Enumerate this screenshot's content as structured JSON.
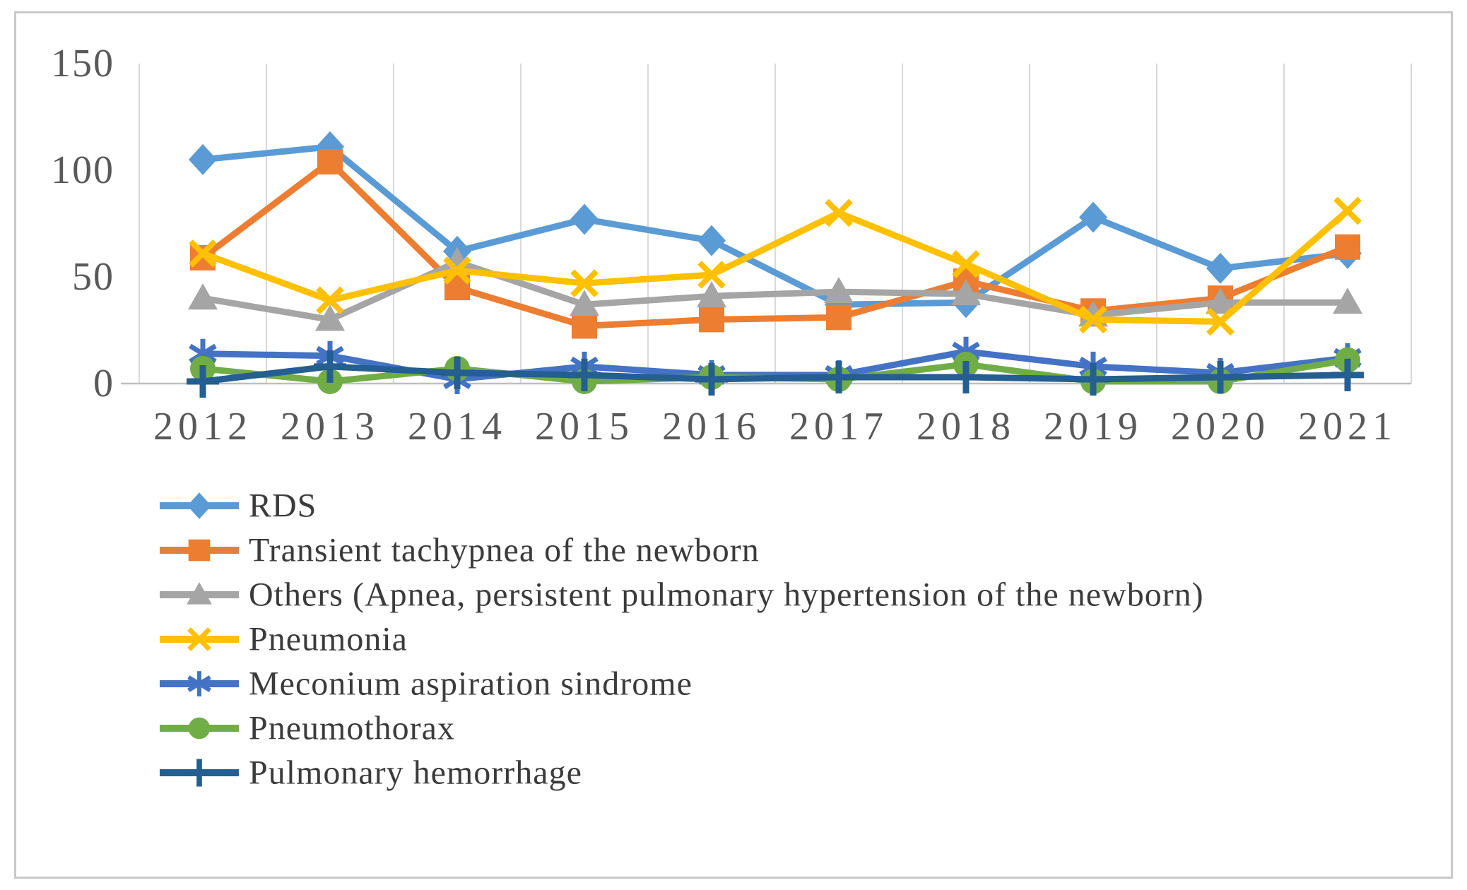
{
  "figure": {
    "background": "#ffffff",
    "border_color": "#c9c9c9"
  },
  "chart_data": {
    "type": "line",
    "title": "",
    "xlabel": "",
    "ylabel": "",
    "categories": [
      "2012",
      "2013",
      "2014",
      "2015",
      "2016",
      "2017",
      "2018",
      "2019",
      "2020",
      "2021"
    ],
    "series": [
      {
        "name": "RDS",
        "color": "#5B9BD5",
        "marker": "diamond",
        "values": [
          105,
          111,
          62,
          77,
          67,
          37,
          38,
          78,
          54,
          61
        ]
      },
      {
        "name": "Transient tachypnea of the newborn",
        "color": "#ED7D31",
        "marker": "square",
        "values": [
          59,
          104,
          45,
          27,
          30,
          31,
          48,
          34,
          40,
          64
        ]
      },
      {
        "name": "Others (Apnea,  persistent pulmonary hypertension of the newborn)",
        "color": "#A5A5A5",
        "marker": "triangle",
        "values": [
          40,
          30,
          57,
          37,
          41,
          43,
          42,
          32,
          38,
          38
        ]
      },
      {
        "name": "Pneumonia",
        "color": "#FFC000",
        "marker": "x",
        "values": [
          61,
          39,
          53,
          47,
          51,
          80,
          56,
          30,
          29,
          81
        ]
      },
      {
        "name": "Meconium aspiration sindrome",
        "color": "#4472C4",
        "marker": "star",
        "values": [
          14,
          13,
          2,
          8,
          4,
          4,
          15,
          8,
          5,
          12
        ]
      },
      {
        "name": "Pneumothorax",
        "color": "#70AD47",
        "marker": "circle",
        "values": [
          7,
          1,
          7,
          1,
          3,
          2,
          9,
          1,
          1,
          11
        ]
      },
      {
        "name": "Pulmonary hemorrhage",
        "color": "#255E91",
        "marker": "plus",
        "values": [
          1,
          8,
          5,
          4,
          2,
          3,
          3,
          2,
          3,
          4
        ]
      }
    ],
    "ylim": [
      0,
      150
    ],
    "yticks": [
      0,
      50,
      100,
      150
    ],
    "grid": "vertical-only",
    "grid_color": "#d9d9d9",
    "axis_color": "#bfbfbf",
    "tick_label_color": "#595959",
    "legend_text_color": "#3b3b3b",
    "legend_position": "bottom-left"
  }
}
